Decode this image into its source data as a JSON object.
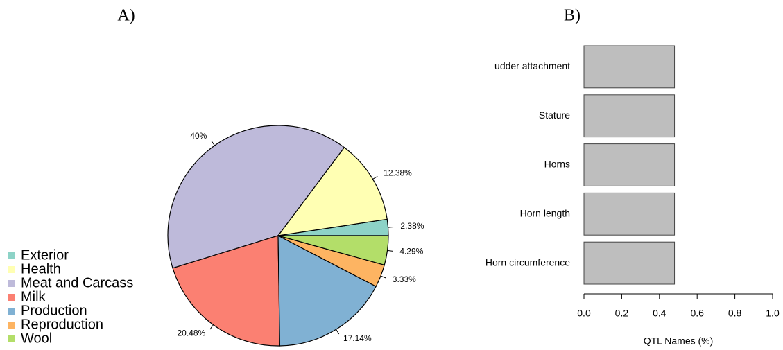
{
  "chart_data": [
    {
      "type": "pie",
      "title": "A)",
      "categories": [
        "Exterior",
        "Health",
        "Meat and Carcass",
        "Milk",
        "Production",
        "Reproduction",
        "Wool"
      ],
      "values": [
        2.38,
        12.38,
        40,
        20.48,
        17.14,
        3.33,
        4.29
      ],
      "value_labels": [
        "2.38%",
        "12.38%",
        "40%",
        "20.48%",
        "17.14%",
        "3.33%",
        "4.29%"
      ],
      "colors": [
        "#8DD3C7",
        "#FFFFB3",
        "#BEBADA",
        "#FB8072",
        "#80B1D3",
        "#FDB462",
        "#B3DE69"
      ]
    },
    {
      "type": "barh",
      "title": "B)",
      "categories": [
        "udder attachment",
        "Stature",
        "Horns",
        "Horn length",
        "Horn circumference"
      ],
      "values": [
        0.48,
        0.48,
        0.48,
        0.48,
        0.48
      ],
      "color": "#BEBEBE",
      "xlabel": "QTL Names (%)",
      "xlim": [
        0,
        1
      ],
      "xticks": [
        {
          "value": 0,
          "label": "0.0"
        },
        0.2,
        0.4,
        0.6,
        0.8,
        {
          "value": 1,
          "label": "1.0"
        }
      ]
    }
  ]
}
